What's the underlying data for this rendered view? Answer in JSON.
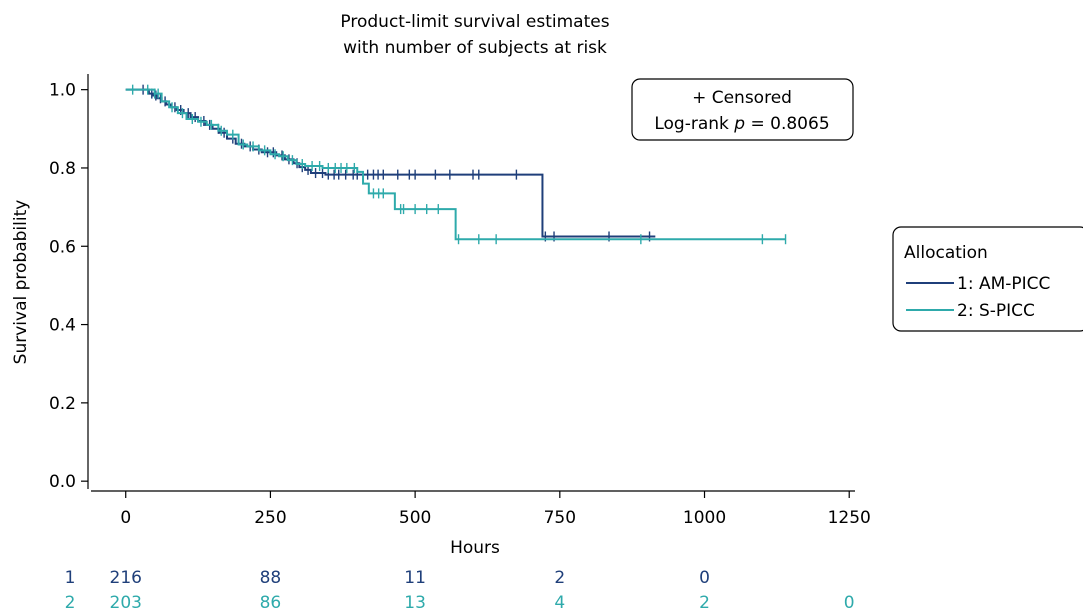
{
  "chart_data": {
    "type": "line",
    "subtype": "kaplan-meier-step",
    "title": [
      "Product-limit survival estimates",
      "with number of subjects at risk"
    ],
    "xlabel": "Hours",
    "ylabel": "Survival probability",
    "xlim": [
      -60,
      1260
    ],
    "ylim": [
      -0.02,
      1.04
    ],
    "x_ticks": [
      0,
      250,
      500,
      750,
      1000,
      1250
    ],
    "x_tick_labels": [
      "0",
      "250",
      "500",
      "750",
      "1000",
      "1250"
    ],
    "y_ticks": [
      0.0,
      0.2,
      0.4,
      0.6,
      0.8,
      1.0
    ],
    "y_tick_labels": [
      "0.0",
      "0.2",
      "0.4",
      "0.6",
      "0.8",
      "1.0"
    ],
    "grid": false,
    "info_box": {
      "censored_label": "+ Censored",
      "logrank_prefix": "Log-rank ",
      "logrank_p": "p",
      "logrank_value": " = 0.8065"
    },
    "legend": {
      "title": "Allocation",
      "position": "right"
    },
    "series": [
      {
        "name": "1: AM-PICC",
        "color": "#1f3f7a",
        "steps": [
          [
            0,
            1.0
          ],
          [
            40,
            0.99
          ],
          [
            48,
            0.985
          ],
          [
            55,
            0.978
          ],
          [
            62,
            0.97
          ],
          [
            70,
            0.962
          ],
          [
            78,
            0.955
          ],
          [
            88,
            0.948
          ],
          [
            100,
            0.94
          ],
          [
            112,
            0.93
          ],
          [
            125,
            0.92
          ],
          [
            138,
            0.91
          ],
          [
            150,
            0.9
          ],
          [
            162,
            0.89
          ],
          [
            175,
            0.875
          ],
          [
            190,
            0.862
          ],
          [
            205,
            0.855
          ],
          [
            220,
            0.847
          ],
          [
            235,
            0.84
          ],
          [
            260,
            0.832
          ],
          [
            275,
            0.822
          ],
          [
            290,
            0.812
          ],
          [
            300,
            0.802
          ],
          [
            310,
            0.795
          ],
          [
            320,
            0.787
          ],
          [
            345,
            0.783
          ],
          [
            720,
            0.625
          ],
          [
            915,
            0.625
          ]
        ],
        "censor_x": [
          30,
          45,
          52,
          60,
          68,
          85,
          95,
          108,
          120,
          135,
          145,
          160,
          170,
          185,
          200,
          215,
          230,
          245,
          255,
          270,
          282,
          296,
          305,
          315,
          328,
          340,
          350,
          360,
          368,
          380,
          393,
          400,
          418,
          428,
          436,
          445,
          470,
          490,
          500,
          535,
          560,
          600,
          610,
          675,
          725,
          740,
          835,
          905
        ]
      },
      {
        "name": "2: S-PICC",
        "color": "#2eaaab",
        "steps": [
          [
            0,
            1.0
          ],
          [
            50,
            0.99
          ],
          [
            62,
            0.97
          ],
          [
            75,
            0.955
          ],
          [
            90,
            0.94
          ],
          [
            105,
            0.925
          ],
          [
            125,
            0.918
          ],
          [
            140,
            0.91
          ],
          [
            160,
            0.895
          ],
          [
            175,
            0.885
          ],
          [
            195,
            0.86
          ],
          [
            210,
            0.855
          ],
          [
            230,
            0.845
          ],
          [
            250,
            0.835
          ],
          [
            265,
            0.83
          ],
          [
            280,
            0.82
          ],
          [
            295,
            0.81
          ],
          [
            310,
            0.805
          ],
          [
            340,
            0.8
          ],
          [
            400,
            0.79
          ],
          [
            410,
            0.76
          ],
          [
            420,
            0.735
          ],
          [
            465,
            0.695
          ],
          [
            570,
            0.618
          ],
          [
            1140,
            0.618
          ]
        ],
        "censor_x": [
          12,
          38,
          50,
          56,
          80,
          98,
          115,
          130,
          148,
          165,
          185,
          203,
          220,
          240,
          258,
          272,
          288,
          305,
          322,
          335,
          350,
          362,
          372,
          382,
          395,
          428,
          437,
          445,
          475,
          480,
          500,
          520,
          540,
          575,
          610,
          640,
          890,
          1100,
          1140
        ]
      }
    ],
    "risk_table": {
      "x": [
        0,
        250,
        500,
        750,
        1000,
        1250
      ],
      "rows": [
        {
          "id": "1",
          "counts": [
            "216",
            "88",
            "11",
            "2",
            "0",
            ""
          ]
        },
        {
          "id": "2",
          "counts": [
            "203",
            "86",
            "13",
            "4",
            "2",
            "0"
          ]
        }
      ]
    }
  }
}
